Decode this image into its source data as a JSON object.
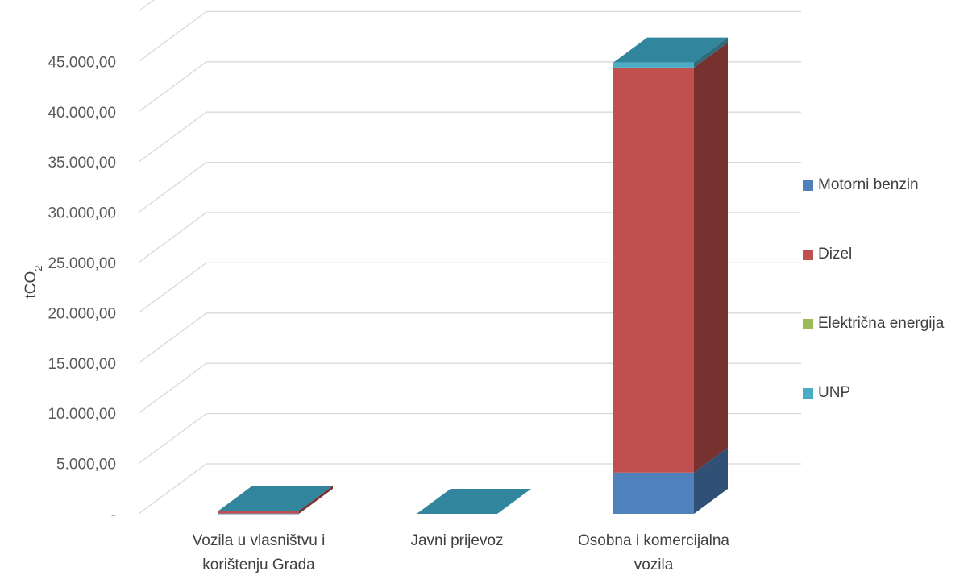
{
  "chart_data": {
    "type": "bar",
    "stacked": true,
    "three_d": true,
    "ylabel": "tCO",
    "ylabel_subscript": "2",
    "ylim": [
      0,
      50000
    ],
    "yticks": [
      0,
      5000,
      10000,
      15000,
      20000,
      25000,
      30000,
      35000,
      40000,
      45000,
      50000
    ],
    "ytick_labels": [
      "-",
      "5.000,00",
      "10.000,00",
      "15.000,00",
      "20.000,00",
      "25.000,00",
      "30.000,00",
      "35.000,00",
      "40.000,00",
      "45.000,00",
      ""
    ],
    "categories": [
      [
        "Vozila u vlasništvu i",
        "korištenju Grada"
      ],
      [
        "Javni prijevoz"
      ],
      [
        "Osobna i komercijalna",
        "vozila"
      ]
    ],
    "series": [
      {
        "name": "Motorni benzin",
        "color": "#4F81BD",
        "values": [
          30,
          0,
          4100
        ]
      },
      {
        "name": "Dizel",
        "color": "#C0504D",
        "values": [
          270,
          0,
          40300
        ]
      },
      {
        "name": "Električna energija",
        "color": "#9BBB59",
        "values": [
          0,
          0,
          0
        ]
      },
      {
        "name": "UNP",
        "color": "#4BACC6",
        "values": [
          0,
          0,
          500
        ]
      }
    ],
    "grid": true,
    "legend_position": "right"
  }
}
